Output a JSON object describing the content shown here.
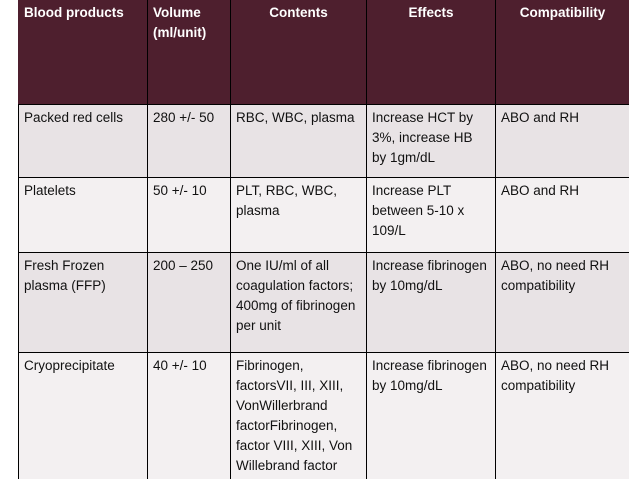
{
  "table": {
    "header": [
      "Blood products",
      "Volume (ml/unit)",
      "Contents",
      "Effects",
      "Compatibility"
    ],
    "rows": [
      [
        "Packed red cells",
        "280 +/- 50",
        "RBC, WBC, plasma",
        "Increase HCT by 3%, increase HB by 1gm/dL",
        "ABO and RH"
      ],
      [
        "Platelets",
        "50 +/- 10",
        "PLT, RBC, WBC, plasma",
        "Increase PLT between 5-10 x 109/L",
        "ABO and RH"
      ],
      [
        "Fresh Frozen plasma (FFP)",
        "200 – 250",
        "One IU/ml of all coagulation factors; 400mg of fibrinogen per unit",
        "Increase fibrinogen by 10mg/dL",
        "ABO, no need RH compatibility"
      ],
      [
        "Cryoprecipitate",
        "40 +/- 10",
        "Fibrinogen, factorsVII, III, XIII, VonWillerbrand factorFibrinogen, factor VIII, XIII, Von Willebrand factor",
        "Increase fibrinogen by 10mg/dL",
        "ABO, no need RH compatibility"
      ]
    ]
  }
}
